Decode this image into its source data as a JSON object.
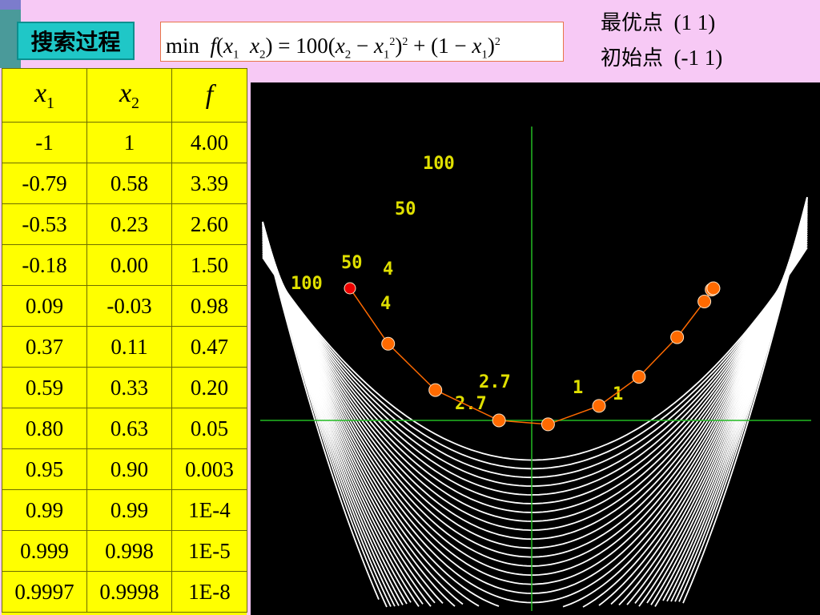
{
  "header": {
    "title": "搜索过程",
    "formula": {
      "min": "min",
      "f": "f",
      "x": "x",
      "sub1": "1",
      "sub2": "2",
      "two": "2",
      "const100": "100",
      "one": "1"
    },
    "optimal_label": "最优点",
    "optimal_value": "(1   1)",
    "initial_label": "初始点",
    "initial_value": "(-1  1)"
  },
  "table": {
    "headers": [
      {
        "var": "x",
        "sub": "1"
      },
      {
        "var": "x",
        "sub": "2"
      },
      {
        "var": "f",
        "sub": ""
      }
    ],
    "rows": [
      [
        "-1",
        "1",
        "4.00"
      ],
      [
        "-0.79",
        "0.58",
        "3.39"
      ],
      [
        "-0.53",
        "0.23",
        "2.60"
      ],
      [
        "-0.18",
        "0.00",
        "1.50"
      ],
      [
        "0.09",
        "-0.03",
        "0.98"
      ],
      [
        "0.37",
        "0.11",
        "0.47"
      ],
      [
        "0.59",
        "0.33",
        "0.20"
      ],
      [
        "0.80",
        "0.63",
        "0.05"
      ],
      [
        "0.95",
        "0.90",
        "0.003"
      ],
      [
        "0.99",
        "0.99",
        "1E-4"
      ],
      [
        "0.999",
        "0.998",
        "1E-5"
      ],
      [
        "0.9997",
        "0.9998",
        "1E-8"
      ]
    ]
  },
  "plot": {
    "contour_labels": [
      "100",
      "50",
      "50",
      "100",
      "4",
      "4",
      "2.7",
      "2.7",
      "1",
      "1"
    ],
    "colors": {
      "background": "#000000",
      "contour": "#ffffff",
      "axis": "#22bb22",
      "label": "#e0e000",
      "path": "#ff6a00",
      "start": "#ee0000"
    }
  }
}
